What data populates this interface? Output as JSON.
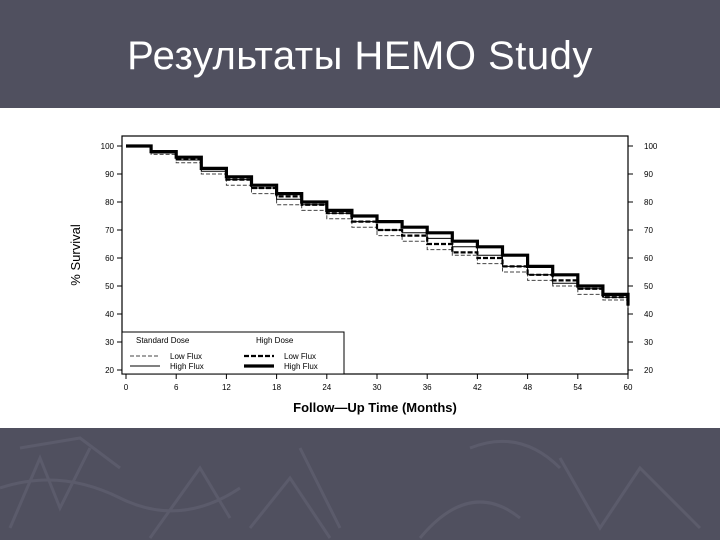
{
  "slide": {
    "title": "Результаты HEMO Study"
  },
  "chart_data": {
    "type": "line",
    "title": "",
    "xlabel": "Follow—Up Time (Months)",
    "ylabel": "% Survival",
    "xlim": [
      0,
      60
    ],
    "ylim": [
      20,
      100
    ],
    "x_ticks": [
      0,
      6,
      12,
      18,
      24,
      30,
      36,
      42,
      48,
      54,
      60
    ],
    "y_ticks": [
      100,
      90,
      80,
      70,
      60,
      50,
      40,
      30,
      20
    ],
    "grid": false,
    "legend": {
      "placement": "bottom-left",
      "standard_heading": "Standard Dose",
      "high_heading": "High Dose",
      "standard_low_label": "Low Flux",
      "standard_high_label": "High Flux",
      "high_low_label": "Low Flux",
      "high_high_label": "High Flux"
    },
    "series": [
      {
        "name": "Standard Dose Low Flux",
        "style": "thin-dashed",
        "x": [
          0,
          3,
          6,
          9,
          12,
          15,
          18,
          21,
          24,
          27,
          30,
          33,
          36,
          39,
          42,
          45,
          48,
          51,
          54,
          57,
          60
        ],
        "y": [
          100,
          97,
          94,
          90,
          86,
          83,
          79,
          77,
          74,
          71,
          68,
          66,
          63,
          61,
          58,
          55,
          52,
          50,
          47,
          45,
          42
        ]
      },
      {
        "name": "Standard Dose High Flux",
        "style": "thin-solid",
        "x": [
          0,
          3,
          6,
          9,
          12,
          15,
          18,
          21,
          24,
          27,
          30,
          33,
          36,
          39,
          42,
          45,
          48,
          51,
          54,
          57,
          60
        ],
        "y": [
          100,
          97.5,
          95,
          91,
          88,
          85,
          81,
          79,
          76,
          73,
          70,
          69,
          67,
          64,
          61,
          57,
          54,
          51,
          49,
          46,
          43
        ]
      },
      {
        "name": "High Dose Low Flux",
        "style": "thick-dashed",
        "x": [
          0,
          3,
          6,
          9,
          12,
          15,
          18,
          21,
          24,
          27,
          30,
          33,
          36,
          39,
          42,
          45,
          48,
          51,
          54,
          57,
          60
        ],
        "y": [
          100,
          98,
          95.5,
          92,
          88,
          85,
          82,
          79,
          76,
          73,
          70,
          68,
          65,
          62,
          60,
          57,
          54,
          52,
          49,
          46,
          43
        ]
      },
      {
        "name": "High Dose High Flux",
        "style": "thick-solid",
        "x": [
          0,
          3,
          6,
          9,
          12,
          15,
          18,
          21,
          24,
          27,
          30,
          33,
          36,
          39,
          42,
          45,
          48,
          51,
          54,
          57,
          60
        ],
        "y": [
          100,
          98,
          96,
          92,
          89,
          86,
          83,
          80,
          77,
          75,
          73,
          71,
          69,
          66,
          64,
          61,
          57,
          54,
          50,
          47,
          43
        ]
      }
    ]
  }
}
